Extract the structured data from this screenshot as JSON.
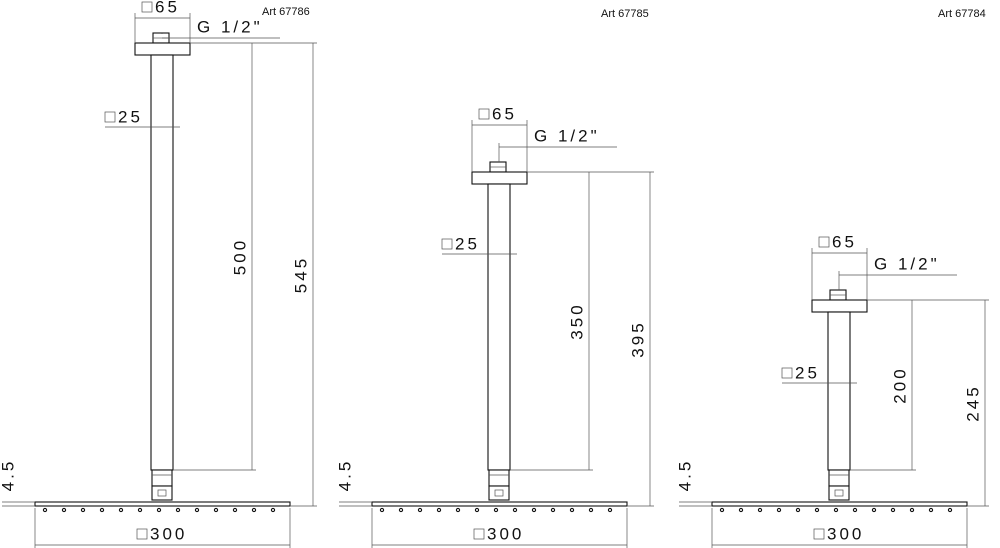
{
  "drawings": [
    {
      "article": "Art 67786",
      "flange": "65",
      "thread": "G 1/2\"",
      "pipe": "25",
      "length": "500",
      "total": "545",
      "plate": "4.5",
      "head": "300"
    },
    {
      "article": "Art 67785",
      "flange": "65",
      "thread": "G 1/2\"",
      "pipe": "25",
      "length": "350",
      "total": "395",
      "plate": "4.5",
      "head": "300"
    },
    {
      "article": "Art 67784",
      "flange": "65",
      "thread": "G 1/2\"",
      "pipe": "25",
      "length": "200",
      "total": "245",
      "plate": "4.5",
      "head": "300"
    }
  ]
}
